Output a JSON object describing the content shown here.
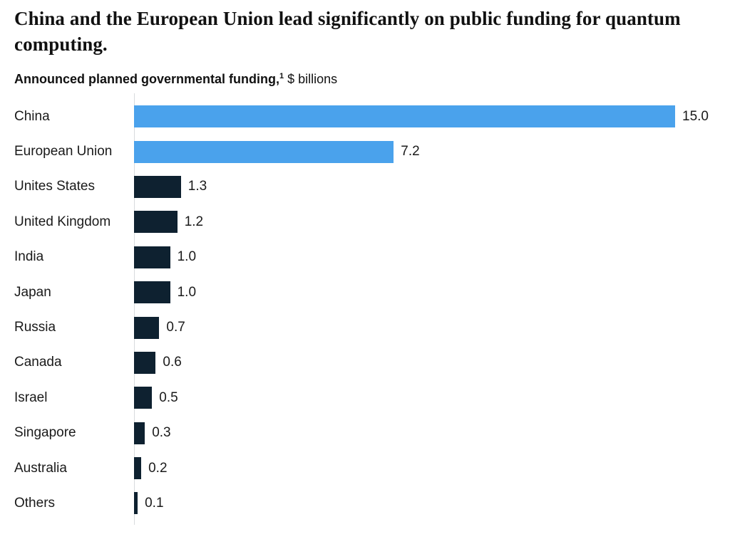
{
  "header": {
    "title": "China and the European Union lead significantly on public funding for quantum computing.",
    "subtitle_bold": "Announced planned governmental funding,",
    "subtitle_superscript": "1",
    "subtitle_regular": " $ billions"
  },
  "chart_data": {
    "type": "bar",
    "orientation": "horizontal",
    "title": "Announced planned governmental funding, $ billions",
    "categories": [
      "China",
      "European Union",
      "Unites States",
      "United Kingdom",
      "India",
      "Japan",
      "Russia",
      "Canada",
      "Israel",
      "Singapore",
      "Australia",
      "Others"
    ],
    "values": [
      15.0,
      7.2,
      1.3,
      1.2,
      1.0,
      1.0,
      0.7,
      0.6,
      0.5,
      0.3,
      0.2,
      0.1
    ],
    "value_labels": [
      "15.0",
      "7.2",
      "1.3",
      "1.2",
      "1.0",
      "1.0",
      "0.7",
      "0.6",
      "0.5",
      "0.3",
      "0.2",
      "0.1"
    ],
    "highlighted": [
      true,
      true,
      false,
      false,
      false,
      false,
      false,
      false,
      false,
      false,
      false,
      false
    ],
    "xlim": [
      0,
      15
    ],
    "grid": false,
    "legend": "none",
    "colors": {
      "highlight": "#4aa2ec",
      "base": "#0e2130",
      "axis": "#d8dbdd",
      "text": "#1a1a1a"
    }
  }
}
